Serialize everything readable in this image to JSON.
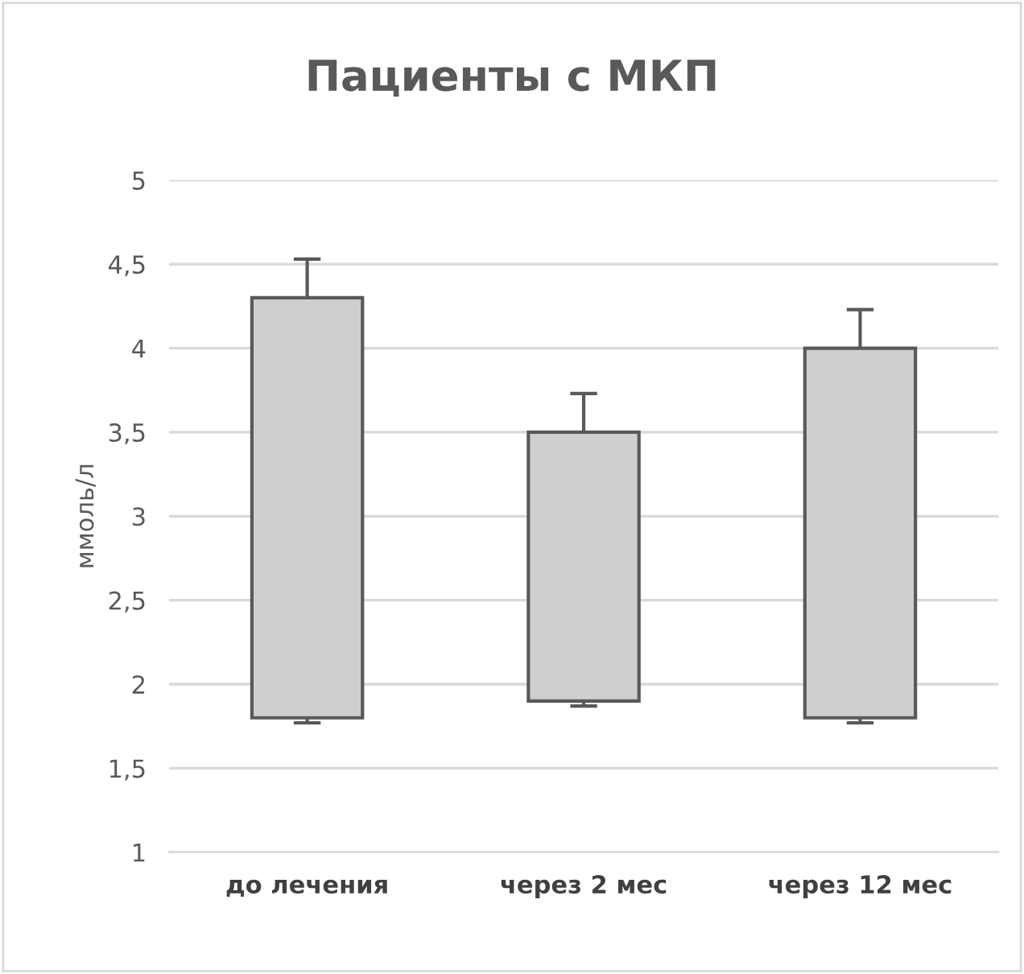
{
  "chart_data": {
    "type": "bar",
    "title": "Пациенты с МКП",
    "ylabel": "ммоль/л",
    "categories": [
      "до лечения",
      "через 2 мес",
      "через 12 мес"
    ],
    "values": [
      2.5,
      1.6,
      2.2
    ],
    "base": [
      1.8,
      1.9,
      1.8
    ],
    "errors": [
      [
        1.77,
        4.53
      ],
      [
        1.87,
        3.73
      ],
      [
        1.77,
        4.23
      ]
    ],
    "color": "#d0cecf",
    "ylim": [
      1,
      5
    ],
    "yticks": [
      1,
      {
        "value": 1.5,
        "label": "1,5"
      },
      2,
      {
        "value": 2.5,
        "label": "2,5"
      },
      3,
      {
        "value": 3.5,
        "label": "3,5"
      },
      4,
      {
        "value": 4.5,
        "label": "4,5"
      },
      5
    ],
    "grid": "y",
    "legend": false
  }
}
